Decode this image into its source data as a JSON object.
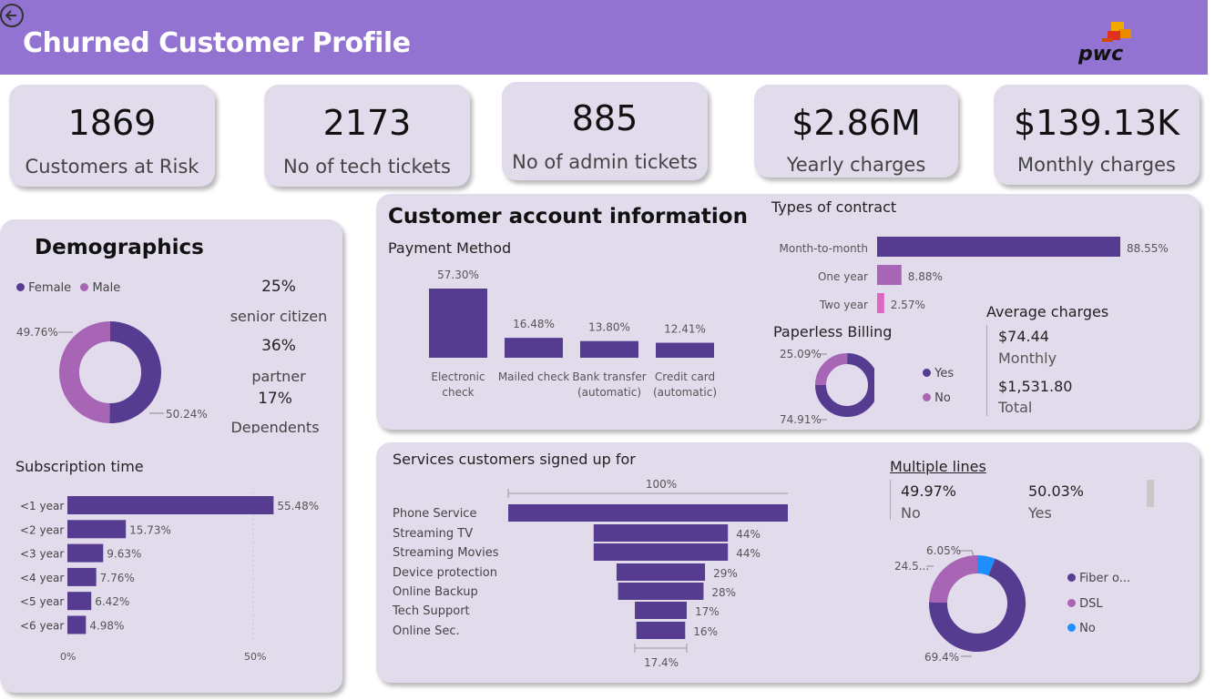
{
  "header": {
    "title": "Churned Customer Profile",
    "logo_text": "pwc",
    "color": "#9273d2"
  },
  "kpis": [
    {
      "value": "1869",
      "label": "Customers at Risk"
    },
    {
      "value": "2173",
      "label": "No of tech tickets"
    },
    {
      "value": "885",
      "label": "No of admin tickets"
    },
    {
      "value": "$2.86M",
      "label": "Yearly charges"
    },
    {
      "value": "$139.13K",
      "label": "Monthly charges"
    }
  ],
  "demographics": {
    "title": "Demographics",
    "legend": [
      {
        "label": "Female",
        "color": "#553c91"
      },
      {
        "label": "Male",
        "color": "#a965b5"
      }
    ],
    "donut_labels": {
      "male": "49.76%",
      "female": "50.24%"
    },
    "stats": [
      {
        "value": "25%",
        "label": "senior citizen"
      },
      {
        "value": "36%",
        "label": "partner"
      },
      {
        "value": "17%",
        "label": "Dependents"
      }
    ]
  },
  "subscription": {
    "title": "Subscription time",
    "ticks": [
      "0%",
      "50%"
    ]
  },
  "account": {
    "title": "Customer account information",
    "payment_title": "Payment Method",
    "contract_title": "Types of contract",
    "paperless_title": "Paperless Billing",
    "paperless_legend": [
      {
        "label": "Yes",
        "color": "#553c91"
      },
      {
        "label": "No",
        "color": "#a965b5"
      }
    ],
    "paperless_labels": {
      "no": "25.09%",
      "yes": "74.91%"
    },
    "avg_title": "Average charges",
    "avg_monthly_value": "$74.44",
    "avg_monthly_label": "Monthly",
    "avg_total_value": "$1,531.80",
    "avg_total_label": "Total"
  },
  "services": {
    "title": "Services customers signed up for",
    "top_label": "100%",
    "bottom_label": "17.4%",
    "multiple_lines_title": "Multiple lines",
    "ml_no_value": "49.97%",
    "ml_no_label": "No",
    "ml_yes_value": "50.03%",
    "ml_yes_label": "Yes",
    "internet_legend": [
      {
        "label": "Fiber o...",
        "color": "#553c91"
      },
      {
        "label": "DSL",
        "color": "#a965b5"
      },
      {
        "label": "No",
        "color": "#1f8fff"
      }
    ],
    "internet_labels": {
      "no": "6.05%",
      "dsl": "24.5...",
      "fiber": "69.4%"
    }
  },
  "chart_data": [
    {
      "type": "pie",
      "title": "Demographics",
      "categories": [
        "Female",
        "Male"
      ],
      "values": [
        50.24,
        49.76
      ]
    },
    {
      "type": "bar",
      "title": "Subscription time",
      "categories": [
        "<1 year",
        "<2 year",
        "<3 year",
        "<4 year",
        "<5 year",
        "<6 year"
      ],
      "values": [
        55.48,
        15.73,
        9.63,
        7.76,
        6.42,
        4.98
      ],
      "value_labels": [
        "55.48%",
        "15.73%",
        "9.63%",
        "7.76%",
        "6.42%",
        "4.98%"
      ],
      "xlim": [
        0,
        60
      ],
      "xticks": [
        "0%",
        "50%"
      ]
    },
    {
      "type": "bar",
      "title": "Payment Method",
      "categories": [
        "Electronic check",
        "Mailed check",
        "Bank transfer (automatic)",
        "Credit card (automatic)"
      ],
      "values": [
        57.3,
        16.48,
        13.8,
        12.41
      ],
      "value_labels": [
        "57.30%",
        "16.48%",
        "13.80%",
        "12.41%"
      ]
    },
    {
      "type": "bar",
      "title": "Types of contract",
      "categories": [
        "Month-to-month",
        "One year",
        "Two year"
      ],
      "values": [
        88.55,
        8.88,
        2.57
      ],
      "value_labels": [
        "88.55%",
        "8.88%",
        "2.57%"
      ],
      "colors": [
        "#553c91",
        "#a965b5",
        "#e066c1"
      ]
    },
    {
      "type": "pie",
      "title": "Paperless Billing",
      "categories": [
        "Yes",
        "No"
      ],
      "values": [
        74.91,
        25.09
      ]
    },
    {
      "type": "bar",
      "title": "Services customers signed up for",
      "categories": [
        "Phone Service",
        "Streaming TV",
        "Streaming Movies",
        "Device protection",
        "Online Backup",
        "Tech Support",
        "Online Sec."
      ],
      "values": [
        100,
        44,
        44,
        29,
        28,
        17,
        16
      ],
      "value_labels": [
        "",
        "44%",
        "44%",
        "29%",
        "28%",
        "17%",
        "16%"
      ]
    },
    {
      "type": "pie",
      "title": "",
      "categories": [
        "Fiber o...",
        "DSL",
        "No"
      ],
      "values": [
        69.4,
        24.55,
        6.05
      ]
    }
  ]
}
